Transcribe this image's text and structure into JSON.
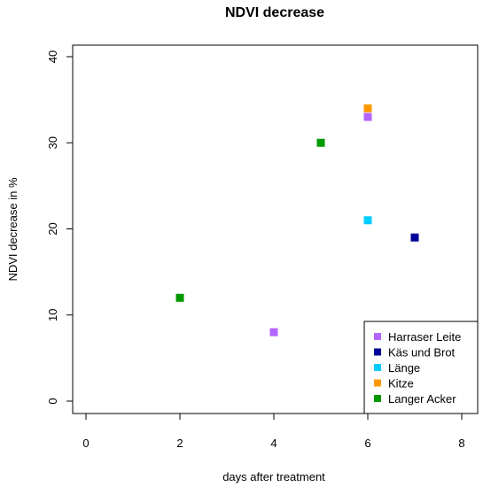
{
  "chart_data": {
    "type": "scatter",
    "title": "NDVI decrease",
    "xlabel": "days after treatment",
    "ylabel": "NDVI decrease in %",
    "xlim": [
      0,
      8
    ],
    "ylim": [
      0,
      40
    ],
    "xticks": [
      "0",
      "2",
      "4",
      "6",
      "8"
    ],
    "yticks": [
      "0",
      "10",
      "20",
      "30",
      "40"
    ],
    "grid": false,
    "legend_position": "bottom-right",
    "series": [
      {
        "name": "Harraser Leite",
        "color": "#b266ff",
        "points": [
          {
            "x": 4,
            "y": 8
          },
          {
            "x": 6,
            "y": 33
          }
        ]
      },
      {
        "name": "Käs und Brot",
        "color": "#000099",
        "points": [
          {
            "x": 7,
            "y": 19
          }
        ]
      },
      {
        "name": "Länge",
        "color": "#00ccff",
        "points": [
          {
            "x": 6,
            "y": 21
          }
        ]
      },
      {
        "name": "Kitze",
        "color": "#ff9900",
        "points": [
          {
            "x": 6,
            "y": 34
          }
        ]
      },
      {
        "name": "Langer Acker",
        "color": "#009900",
        "points": [
          {
            "x": 2,
            "y": 12
          },
          {
            "x": 5,
            "y": 30
          }
        ]
      }
    ]
  }
}
